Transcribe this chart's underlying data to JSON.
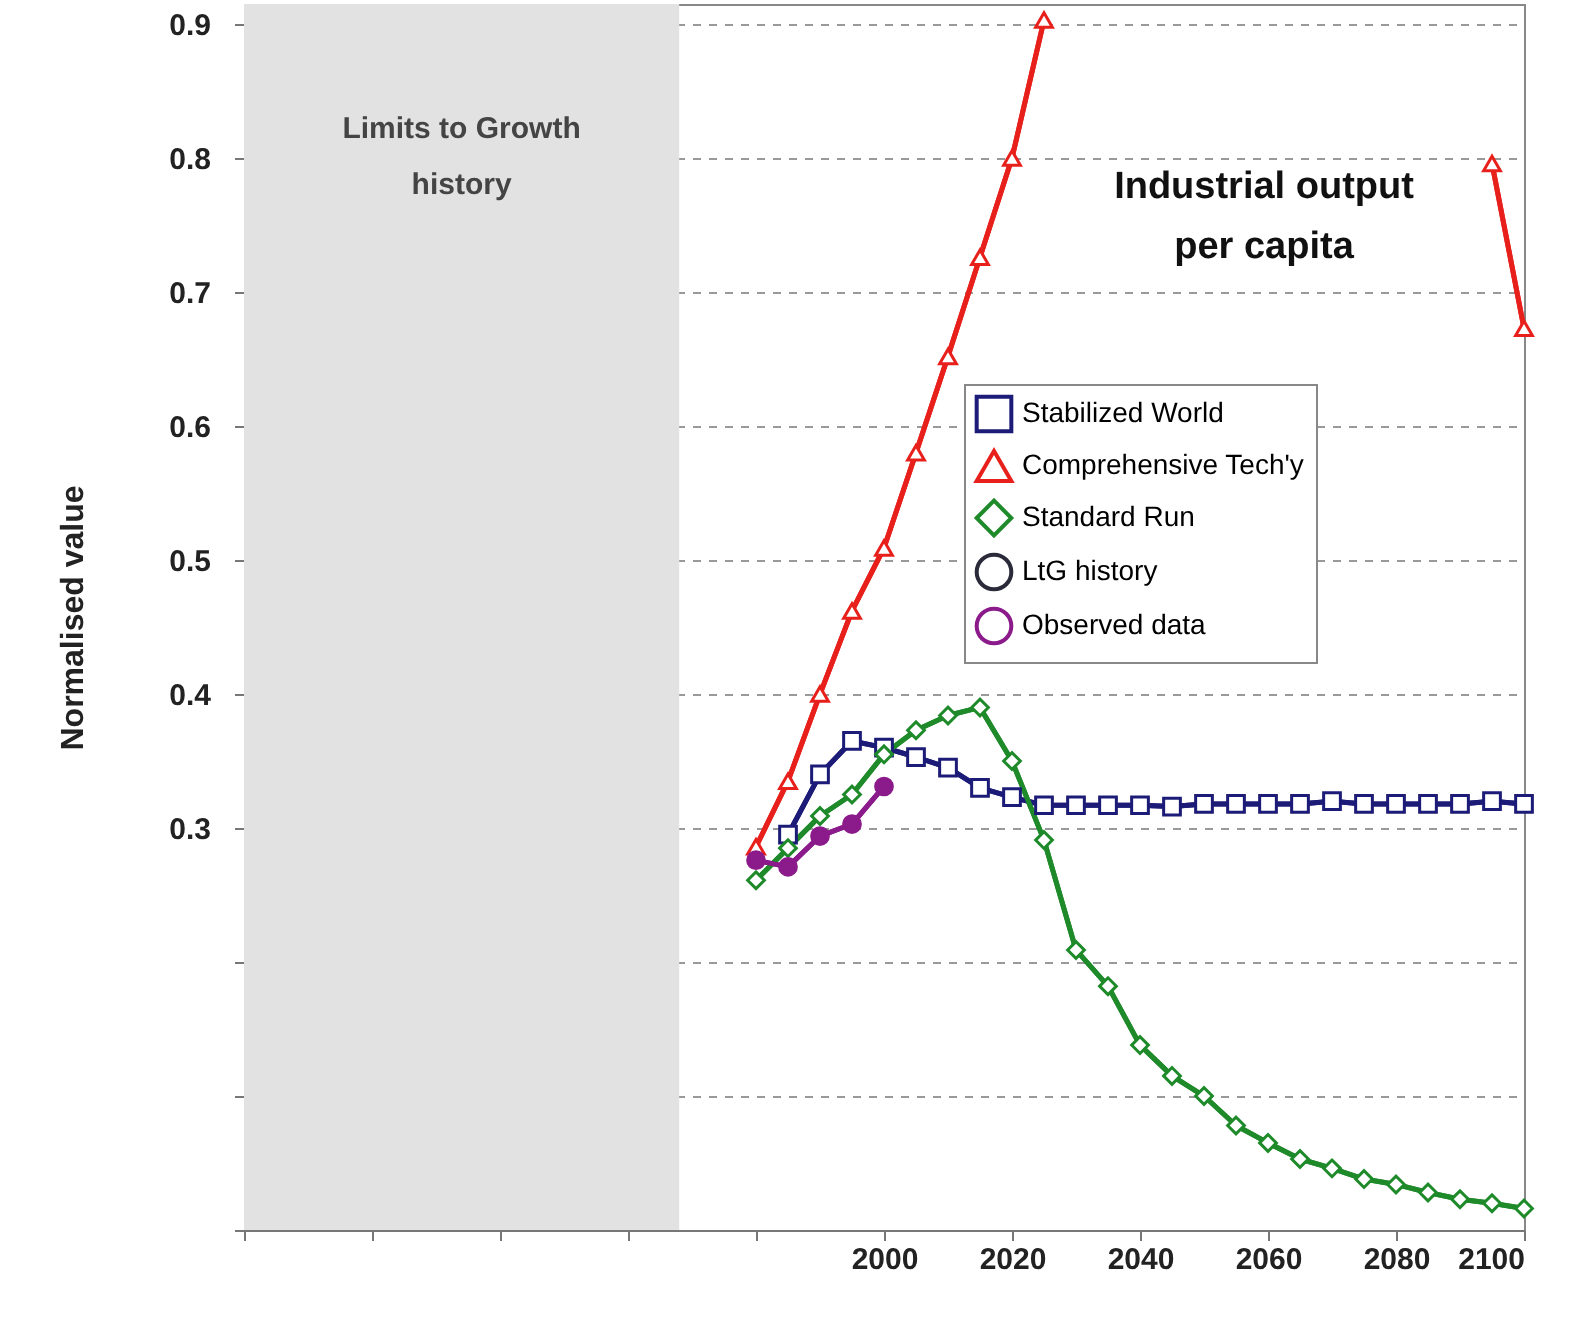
{
  "chart_data": {
    "type": "line",
    "ylabel": "Normalised value",
    "xlim": [
      1900,
      2100
    ],
    "xticks": [
      {
        "value": 1900,
        "label": null
      },
      {
        "value": 1920,
        "label": null
      },
      {
        "value": 1940,
        "label": null
      },
      {
        "value": 1960,
        "label": null
      },
      {
        "value": 1980,
        "label": null
      },
      2000,
      2020,
      2040,
      2060,
      2080,
      2100
    ],
    "ylim": [
      0,
      0.915
    ],
    "yticks": [
      {
        "value": 0,
        "label": null
      },
      {
        "value": 0.1,
        "label": null
      },
      {
        "value": 0.2,
        "label": null
      },
      0.3,
      0.4,
      0.5,
      0.6,
      0.7,
      0.8,
      0.9
    ],
    "grid": "y",
    "legend": "right",
    "annotations": [
      "Industrial output\nper capita"
    ],
    "bands": [
      {
        "axis": "x",
        "from": 1900,
        "to": 1968,
        "label": "Limits to Growth\nhistory",
        "color": "#e2e2e2"
      }
    ],
    "series": [
      {
        "name": "Stabilized World",
        "color": "#1c1c78",
        "marker": "square",
        "x": [
          1985,
          1990,
          1995,
          2000,
          2005,
          2010,
          2015,
          2020,
          2025,
          2030,
          2035,
          2040,
          2045,
          2050,
          2055,
          2060,
          2065,
          2070,
          2075,
          2080,
          2085,
          2090,
          2095,
          2100
        ],
        "values": [
          0.295,
          0.34,
          0.365,
          0.36,
          0.353,
          0.345,
          0.33,
          0.323,
          0.317,
          0.317,
          0.317,
          0.317,
          0.316,
          0.318,
          0.318,
          0.318,
          0.318,
          0.32,
          0.318,
          0.318,
          0.318,
          0.318,
          0.32,
          0.318
        ]
      },
      {
        "name": "Comprehensive Tech'y",
        "color": "#e8201c",
        "marker": "triangle",
        "x": [
          1980,
          1985,
          1990,
          1995,
          2000,
          2005,
          2010,
          2015,
          2020,
          2025,
          2030,
          2090,
          2095,
          2100
        ],
        "values": [
          0.286,
          0.335,
          0.4,
          0.462,
          0.509,
          0.58,
          0.652,
          0.726,
          0.8,
          0.903,
          null,
          null,
          0.796,
          0.673
        ]
      },
      {
        "name": "Standard Run",
        "color": "#1e8a2a",
        "marker": "diamond",
        "x": [
          1980,
          1985,
          1990,
          1995,
          2000,
          2005,
          2010,
          2015,
          2020,
          2025,
          2030,
          2035,
          2040,
          2045,
          2050,
          2055,
          2060,
          2065,
          2070,
          2075,
          2080,
          2085,
          2090,
          2095,
          2100
        ],
        "values": [
          0.261,
          0.285,
          0.309,
          0.325,
          0.355,
          0.373,
          0.384,
          0.39,
          0.35,
          0.291,
          0.209,
          0.182,
          0.138,
          0.115,
          0.1,
          0.078,
          0.065,
          0.053,
          0.046,
          0.038,
          0.034,
          0.028,
          0.023,
          0.02,
          0.016
        ]
      },
      {
        "name": "LtG history",
        "color": "#2a2a3a",
        "marker": "circle"
      },
      {
        "name": "Observed data",
        "color": "#8b1a8b",
        "marker": "filled_circle",
        "x": [
          1980,
          1985,
          1990,
          1995,
          2000
        ],
        "values": [
          0.276,
          0.271,
          0.294,
          0.303,
          0.331
        ]
      }
    ]
  }
}
